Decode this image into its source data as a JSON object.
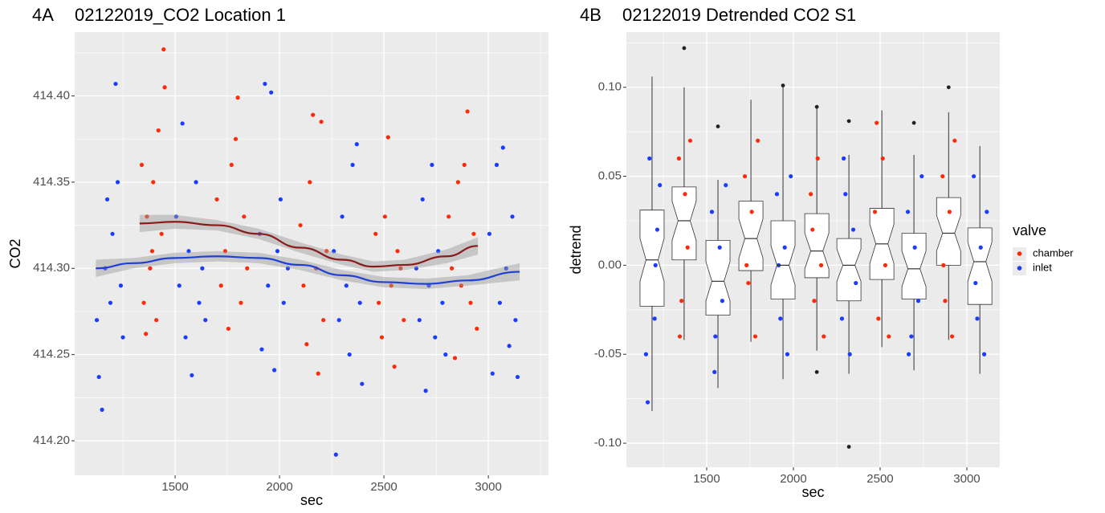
{
  "chart_data": [
    {
      "type": "scatter",
      "tag": "4A",
      "title": "02122019_CO2 Location 1",
      "x_label": "sec",
      "y_label": "CO2",
      "xlim": [
        1019,
        3288
      ],
      "ylim": [
        414.18,
        414.437
      ],
      "xticks": [
        1500,
        2000,
        2500,
        3000
      ],
      "yticks": [
        {
          "value": 414.2,
          "label": "414.20"
        },
        {
          "value": 414.25,
          "label": "414.25"
        },
        {
          "value": 414.3,
          "label": "414.30"
        },
        {
          "value": 414.35,
          "label": "414.35"
        },
        {
          "value": 414.4,
          "label": "414.40"
        }
      ],
      "grid": true,
      "series": [
        {
          "name": "chamber",
          "color": "#ff2a0a",
          "x": [
            1340,
            1350,
            1365,
            1380,
            1395,
            1410,
            1420,
            1435,
            1445,
            1450,
            1360,
            1390,
            1700,
            1720,
            1740,
            1755,
            1770,
            1790,
            1800,
            1815,
            1830,
            1845,
            2100,
            2115,
            2130,
            2145,
            2160,
            2175,
            2185,
            2200,
            2210,
            2225,
            2460,
            2475,
            2490,
            2505,
            2520,
            2535,
            2550,
            2565,
            2580,
            2595,
            2810,
            2825,
            2840,
            2855,
            2870,
            2885,
            2900,
            2915,
            2930,
            2945
          ],
          "values": [
            414.36,
            414.28,
            414.33,
            414.3,
            414.35,
            414.27,
            414.38,
            414.32,
            414.427,
            414.405,
            414.262,
            414.31,
            414.34,
            414.29,
            414.31,
            414.265,
            414.36,
            414.375,
            414.399,
            414.28,
            414.33,
            414.3,
            414.325,
            414.29,
            414.256,
            414.35,
            414.389,
            414.3,
            414.239,
            414.385,
            414.27,
            414.31,
            414.32,
            414.28,
            414.26,
            414.33,
            414.376,
            414.29,
            414.243,
            414.31,
            414.3,
            414.27,
            414.33,
            414.3,
            414.248,
            414.35,
            414.29,
            414.36,
            414.391,
            414.28,
            414.32,
            414.265
          ]
        },
        {
          "name": "inlet",
          "color": "#1a3cff",
          "x": [
            1125,
            1135,
            1150,
            1165,
            1175,
            1190,
            1200,
            1215,
            1225,
            1240,
            1250,
            1505,
            1520,
            1535,
            1550,
            1565,
            1580,
            1600,
            1615,
            1630,
            1645,
            1905,
            1915,
            1930,
            1945,
            1960,
            1975,
            1990,
            2005,
            2020,
            2040,
            2260,
            2270,
            2285,
            2300,
            2320,
            2335,
            2350,
            2370,
            2385,
            2395,
            2655,
            2670,
            2685,
            2700,
            2715,
            2730,
            2745,
            2760,
            2780,
            2795,
            3005,
            3020,
            3040,
            3055,
            3070,
            3085,
            3100,
            3115,
            3130,
            3140
          ],
          "values": [
            414.27,
            414.237,
            414.218,
            414.3,
            414.34,
            414.28,
            414.32,
            414.407,
            414.35,
            414.29,
            414.26,
            414.33,
            414.29,
            414.384,
            414.26,
            414.31,
            414.238,
            414.35,
            414.28,
            414.3,
            414.27,
            414.32,
            414.253,
            414.407,
            414.29,
            414.402,
            414.241,
            414.31,
            414.34,
            414.28,
            414.3,
            414.31,
            414.192,
            414.27,
            414.33,
            414.29,
            414.25,
            414.36,
            414.372,
            414.28,
            414.233,
            414.3,
            414.27,
            414.34,
            414.229,
            414.29,
            414.36,
            414.26,
            414.31,
            414.28,
            414.25,
            414.32,
            414.239,
            414.36,
            414.28,
            414.37,
            414.3,
            414.255,
            414.33,
            414.27,
            414.237
          ]
        }
      ],
      "smooth": [
        {
          "color": "#8b1a1a",
          "x": [
            1330,
            1500,
            1700,
            1900,
            2100,
            2300,
            2450,
            2600,
            2800,
            2950
          ],
          "values": [
            414.326,
            414.327,
            414.325,
            414.32,
            414.312,
            414.305,
            414.301,
            414.302,
            414.307,
            414.313
          ],
          "lo": [
            414.321,
            414.323,
            414.322,
            414.317,
            414.309,
            414.302,
            414.298,
            414.299,
            414.303,
            414.308
          ],
          "hi": [
            414.331,
            414.331,
            414.328,
            414.323,
            414.315,
            414.308,
            414.304,
            414.305,
            414.311,
            414.318
          ]
        },
        {
          "color": "#1f3fd6",
          "x": [
            1120,
            1300,
            1500,
            1700,
            1900,
            2100,
            2300,
            2500,
            2700,
            2900,
            3150
          ],
          "values": [
            414.3,
            414.303,
            414.306,
            414.307,
            414.306,
            414.302,
            414.296,
            414.292,
            414.291,
            414.293,
            414.298
          ],
          "lo": [
            414.295,
            414.3,
            414.303,
            414.304,
            414.303,
            414.299,
            414.293,
            414.289,
            414.288,
            414.29,
            414.293
          ],
          "hi": [
            414.305,
            414.306,
            414.309,
            414.31,
            414.309,
            414.305,
            414.299,
            414.295,
            414.294,
            414.296,
            414.303
          ]
        }
      ]
    },
    {
      "type": "box",
      "tag": "4B",
      "title": "02122019 Detrended CO2 S1",
      "x_label": "sec",
      "y_label": "detrend",
      "xlim": [
        1037,
        3190
      ],
      "ylim": [
        -0.1135,
        0.131
      ],
      "xticks": [
        1500,
        2000,
        2500,
        3000
      ],
      "yticks": [
        {
          "value": -0.1,
          "label": "-0.10"
        },
        {
          "value": -0.05,
          "label": "-0.05"
        },
        {
          "value": 0,
          "label": "0.00"
        },
        {
          "value": 0.05,
          "label": "0.05"
        },
        {
          "value": 0.1,
          "label": "0.10"
        }
      ],
      "grid": true,
      "legend": {
        "title": "valve",
        "position": "right"
      },
      "boxes": [
        {
          "x": 1185,
          "q1": -0.023,
          "median": 0.003,
          "q3": 0.031,
          "whislo": -0.082,
          "whishi": 0.106,
          "notch": [
            -0.009,
            0.015
          ],
          "outliers": []
        },
        {
          "x": 1370,
          "q1": 0.003,
          "median": 0.025,
          "q3": 0.044,
          "whislo": -0.042,
          "whishi": 0.1,
          "notch": [
            0.014,
            0.036
          ],
          "outliers": [
            0.122
          ]
        },
        {
          "x": 1565,
          "q1": -0.028,
          "median": -0.009,
          "q3": 0.014,
          "whislo": -0.069,
          "whishi": 0.048,
          "notch": [
            -0.02,
            0.002
          ],
          "outliers": [
            0.078
          ]
        },
        {
          "x": 1755,
          "q1": -0.003,
          "median": 0.015,
          "q3": 0.036,
          "whislo": -0.043,
          "whishi": 0.093,
          "notch": [
            0.004,
            0.026
          ],
          "outliers": []
        },
        {
          "x": 1940,
          "q1": -0.019,
          "median": 0.0,
          "q3": 0.025,
          "whislo": -0.064,
          "whishi": 0.1,
          "notch": [
            -0.011,
            0.011
          ],
          "outliers": [
            0.101
          ]
        },
        {
          "x": 2135,
          "q1": -0.007,
          "median": 0.008,
          "q3": 0.029,
          "whislo": -0.048,
          "whishi": 0.088,
          "notch": [
            -0.002,
            0.018
          ],
          "outliers": [
            0.089,
            -0.06
          ]
        },
        {
          "x": 2320,
          "q1": -0.02,
          "median": 0.0,
          "q3": 0.015,
          "whislo": -0.061,
          "whishi": 0.062,
          "notch": [
            -0.009,
            0.009
          ],
          "outliers": [
            0.081,
            -0.102
          ]
        },
        {
          "x": 2510,
          "q1": -0.008,
          "median": 0.012,
          "q3": 0.032,
          "whislo": -0.046,
          "whishi": 0.087,
          "notch": [
            0.001,
            0.023
          ],
          "outliers": []
        },
        {
          "x": 2695,
          "q1": -0.019,
          "median": -0.002,
          "q3": 0.018,
          "whislo": -0.059,
          "whishi": 0.062,
          "notch": [
            -0.012,
            0.008
          ],
          "outliers": [
            0.08
          ]
        },
        {
          "x": 2895,
          "q1": 0.0,
          "median": 0.018,
          "q3": 0.038,
          "whislo": -0.042,
          "whishi": 0.086,
          "notch": [
            0.008,
            0.028
          ],
          "outliers": [
            0.1
          ]
        },
        {
          "x": 3075,
          "q1": -0.022,
          "median": 0.002,
          "q3": 0.021,
          "whislo": -0.061,
          "whishi": 0.067,
          "notch": [
            -0.009,
            0.013
          ],
          "outliers": []
        }
      ],
      "series": [
        {
          "name": "chamber",
          "color": "#ff2a0a",
          "x": [
            1340,
            1355,
            1375,
            1390,
            1405,
            1345,
            1720,
            1740,
            1760,
            1780,
            1795,
            1730,
            2100,
            2120,
            2140,
            2160,
            2175,
            2110,
            2470,
            2490,
            2515,
            2530,
            2550,
            2480,
            2860,
            2875,
            2900,
            2915,
            2930,
            2865
          ],
          "values": [
            0.06,
            -0.02,
            0.04,
            0.01,
            0.07,
            -0.04,
            0.05,
            -0.01,
            0.03,
            -0.04,
            0.07,
            0.0,
            0.04,
            -0.02,
            0.06,
            0.0,
            -0.04,
            0.02,
            0.03,
            -0.03,
            0.06,
            0.0,
            -0.04,
            0.08,
            0.05,
            -0.02,
            0.03,
            -0.04,
            0.07,
            0.0
          ]
        },
        {
          "name": "inlet",
          "color": "#1a3cff",
          "x": [
            1150,
            1170,
            1200,
            1215,
            1230,
            1160,
            1205,
            1530,
            1550,
            1575,
            1590,
            1610,
            1545,
            1905,
            1925,
            1950,
            1965,
            1985,
            1915,
            2280,
            2300,
            2325,
            2345,
            2360,
            2290,
            2660,
            2680,
            2700,
            2720,
            2740,
            2665,
            3040,
            3060,
            3080,
            3100,
            3115,
            3050
          ],
          "values": [
            -0.05,
            0.06,
            -0.03,
            0.02,
            0.045,
            -0.077,
            0.0,
            0.03,
            -0.04,
            0.01,
            -0.02,
            0.045,
            -0.06,
            0.04,
            -0.03,
            0.01,
            -0.05,
            0.05,
            0.0,
            -0.03,
            0.04,
            -0.05,
            0.02,
            -0.01,
            0.06,
            0.03,
            -0.04,
            0.01,
            -0.02,
            0.05,
            -0.05,
            0.05,
            -0.03,
            0.01,
            -0.05,
            0.03,
            -0.01
          ]
        }
      ]
    }
  ]
}
